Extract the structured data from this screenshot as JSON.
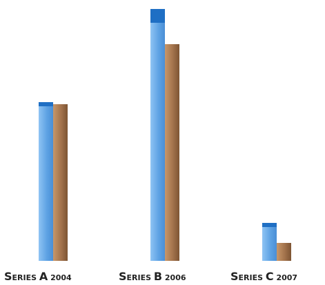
{
  "chart_data": {
    "type": "bar",
    "title": "",
    "xlabel": "",
    "ylabel": "",
    "categories": [
      "SERIES A 2004",
      "SERIES B 2006",
      "SERIES C 2007"
    ],
    "category_parts": [
      {
        "caps": "SERIES ",
        "letter": "A",
        "year": " 2004"
      },
      {
        "caps": "SERIES ",
        "letter": "B",
        "year": " 2006"
      },
      {
        "caps": "SERIES ",
        "letter": "C",
        "year": " 2007"
      }
    ],
    "series": [
      {
        "values": [
          230,
          365,
          55
        ],
        "color": "#5b9fe0",
        "top_color": "#1f6fc4"
      },
      {
        "values": [
          227,
          314,
          26
        ],
        "color": "#a0704a"
      }
    ],
    "ylim": [
      0,
      380
    ],
    "grid": false,
    "legend": "none"
  }
}
